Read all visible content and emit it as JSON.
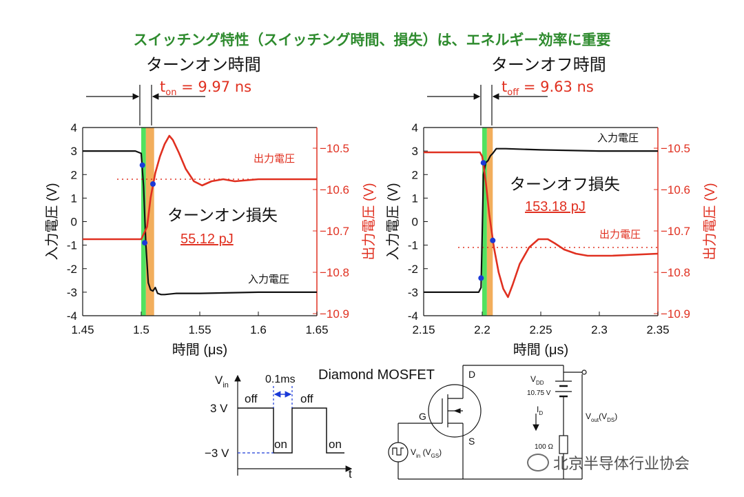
{
  "headline": "スイッチング特性（スイッチング時間、損失）は、エネルギー効率に重要",
  "colors": {
    "input": "#111111",
    "output": "#e03020",
    "green_band": "#33dd44",
    "orange_band": "#f0a040",
    "marker": "#1a3ad8",
    "headline": "#2e8b2e"
  },
  "chart_data": [
    {
      "type": "line",
      "section_title": "ターンオン時間",
      "time_label": "t",
      "time_sub": "on",
      "time_value": " = 9.97 ns",
      "loss_title": "ターンオン損失",
      "loss_value": "55.12 pJ",
      "input_label": "入力電圧",
      "output_label": "出力電圧",
      "xlabel": "時間 (μs)",
      "ylabel_left": "入力電圧 (V)",
      "ylabel_right": "出力電圧 (V)",
      "xlim": [
        1.45,
        1.65
      ],
      "ylim_left": [
        -4,
        4
      ],
      "ylim_right": [
        -10.9,
        -10.45
      ],
      "xticks": [
        "1.45",
        "1.5",
        "1.55",
        "1.6",
        "1.65"
      ],
      "yticks_left": [
        "4",
        "3",
        "2",
        "1",
        "0",
        "-1",
        "-2",
        "-3",
        "-4"
      ],
      "yticks_right": [
        "-10.5",
        "-10.6",
        "-10.7",
        "-10.8",
        "-10.9"
      ],
      "series": [
        {
          "name": "入力電圧",
          "axis": "left",
          "x": [
            1.45,
            1.495,
            1.5,
            1.502,
            1.504,
            1.506,
            1.508,
            1.51,
            1.512,
            1.514,
            1.517,
            1.52,
            1.53,
            1.55,
            1.6,
            1.65
          ],
          "y": [
            3.0,
            3.0,
            2.9,
            1.5,
            -1.0,
            -2.6,
            -2.9,
            -2.95,
            -2.8,
            -3.05,
            -3.1,
            -3.1,
            -3.05,
            -3.05,
            -3.0,
            -3.0
          ]
        },
        {
          "name": "出力電圧",
          "axis": "right",
          "x": [
            1.45,
            1.5,
            1.505,
            1.508,
            1.512,
            1.516,
            1.52,
            1.524,
            1.527,
            1.532,
            1.538,
            1.545,
            1.552,
            1.56,
            1.57,
            1.58,
            1.6,
            1.62,
            1.65
          ],
          "y": [
            -10.72,
            -10.72,
            -10.69,
            -10.62,
            -10.56,
            -10.52,
            -10.49,
            -10.47,
            -10.48,
            -10.51,
            -10.55,
            -10.58,
            -10.59,
            -10.58,
            -10.575,
            -10.58,
            -10.575,
            -10.575,
            -10.575
          ]
        }
      ],
      "dotted_level": -10.575,
      "band_green": [
        1.5,
        1.504
      ],
      "band_orange": [
        1.504,
        1.511
      ],
      "markers": [
        {
          "axis": "left",
          "x": 1.501,
          "y": 2.4
        },
        {
          "axis": "left",
          "x": 1.503,
          "y": -0.9
        },
        {
          "axis": "left",
          "x": 1.51,
          "y": 1.6
        }
      ]
    },
    {
      "type": "line",
      "section_title": "ターンオフ時間",
      "time_label": "t",
      "time_sub": "off",
      "time_value": " = 9.63 ns",
      "loss_title": "ターンオフ損失",
      "loss_value": "153.18 pJ",
      "input_label": "入力電圧",
      "output_label": "出力電圧",
      "xlabel": "時間 (μs)",
      "ylabel_left": "入力電圧 (V)",
      "ylabel_right": "出力電圧 (V)",
      "xlim": [
        2.15,
        2.35
      ],
      "ylim_left": [
        -4,
        4
      ],
      "ylim_right": [
        -10.9,
        -10.45
      ],
      "xticks": [
        "2.15",
        "2.2",
        "2.25",
        "2.3",
        "2.35"
      ],
      "yticks_left": [
        "4",
        "3",
        "2",
        "1",
        "0",
        "-1",
        "-2",
        "-3",
        "-4"
      ],
      "yticks_right": [
        "-10.5",
        "-10.6",
        "-10.7",
        "-10.8",
        "-10.9"
      ],
      "series": [
        {
          "name": "入力電圧",
          "axis": "left",
          "x": [
            2.15,
            2.197,
            2.199,
            2.2,
            2.201,
            2.203,
            2.205,
            2.207,
            2.209,
            2.212,
            2.22,
            2.25,
            2.3,
            2.35
          ],
          "y": [
            -3.0,
            -3.0,
            -2.8,
            -0.5,
            2.0,
            2.5,
            2.6,
            2.8,
            2.9,
            3.1,
            3.1,
            3.05,
            3.0,
            3.0
          ]
        },
        {
          "name": "出力電圧",
          "axis": "right",
          "x": [
            2.15,
            2.198,
            2.2,
            2.203,
            2.206,
            2.21,
            2.214,
            2.218,
            2.222,
            2.226,
            2.232,
            2.24,
            2.248,
            2.256,
            2.262,
            2.27,
            2.28,
            2.29,
            2.31,
            2.35
          ],
          "y": [
            -10.51,
            -10.51,
            -10.52,
            -10.58,
            -10.66,
            -10.74,
            -10.8,
            -10.84,
            -10.86,
            -10.83,
            -10.78,
            -10.74,
            -10.72,
            -10.72,
            -10.73,
            -10.745,
            -10.755,
            -10.76,
            -10.76,
            -10.755
          ]
        }
      ],
      "dotted_level": -10.74,
      "band_green": [
        2.2,
        2.204
      ],
      "band_orange": [
        2.204,
        2.209
      ],
      "markers": [
        {
          "axis": "left",
          "x": 2.201,
          "y": 2.5
        },
        {
          "axis": "left",
          "x": 2.209,
          "y": -0.8
        },
        {
          "axis": "left",
          "x": 2.199,
          "y": -2.4
        }
      ]
    }
  ],
  "waveform": {
    "vin": "V",
    "vin_sub": "in",
    "high_label": "3 V",
    "low_label": "−3 V",
    "pulse_width": "0.1ms",
    "off_label": "off",
    "on_label": "on",
    "t_label": "t"
  },
  "circuit": {
    "title": "Diamond MOSFET",
    "drain": "D",
    "gate": "G",
    "source": "S",
    "vdd": "V",
    "vdd_sub": "DD",
    "vdd_value": "10.75 V",
    "id": "I",
    "id_sub": "D",
    "resistor": "100 Ω",
    "vout": "V",
    "vout_sub": "out",
    "vout_paren": "(V",
    "vout_paren_sub": "DS",
    "vout_close": ")",
    "vin_src": "V",
    "vin_src_sub": "in",
    "vin_paren": " (V",
    "vin_paren_sub": "GS",
    "vin_close": ")"
  },
  "watermark": "北京半导体行业协会"
}
